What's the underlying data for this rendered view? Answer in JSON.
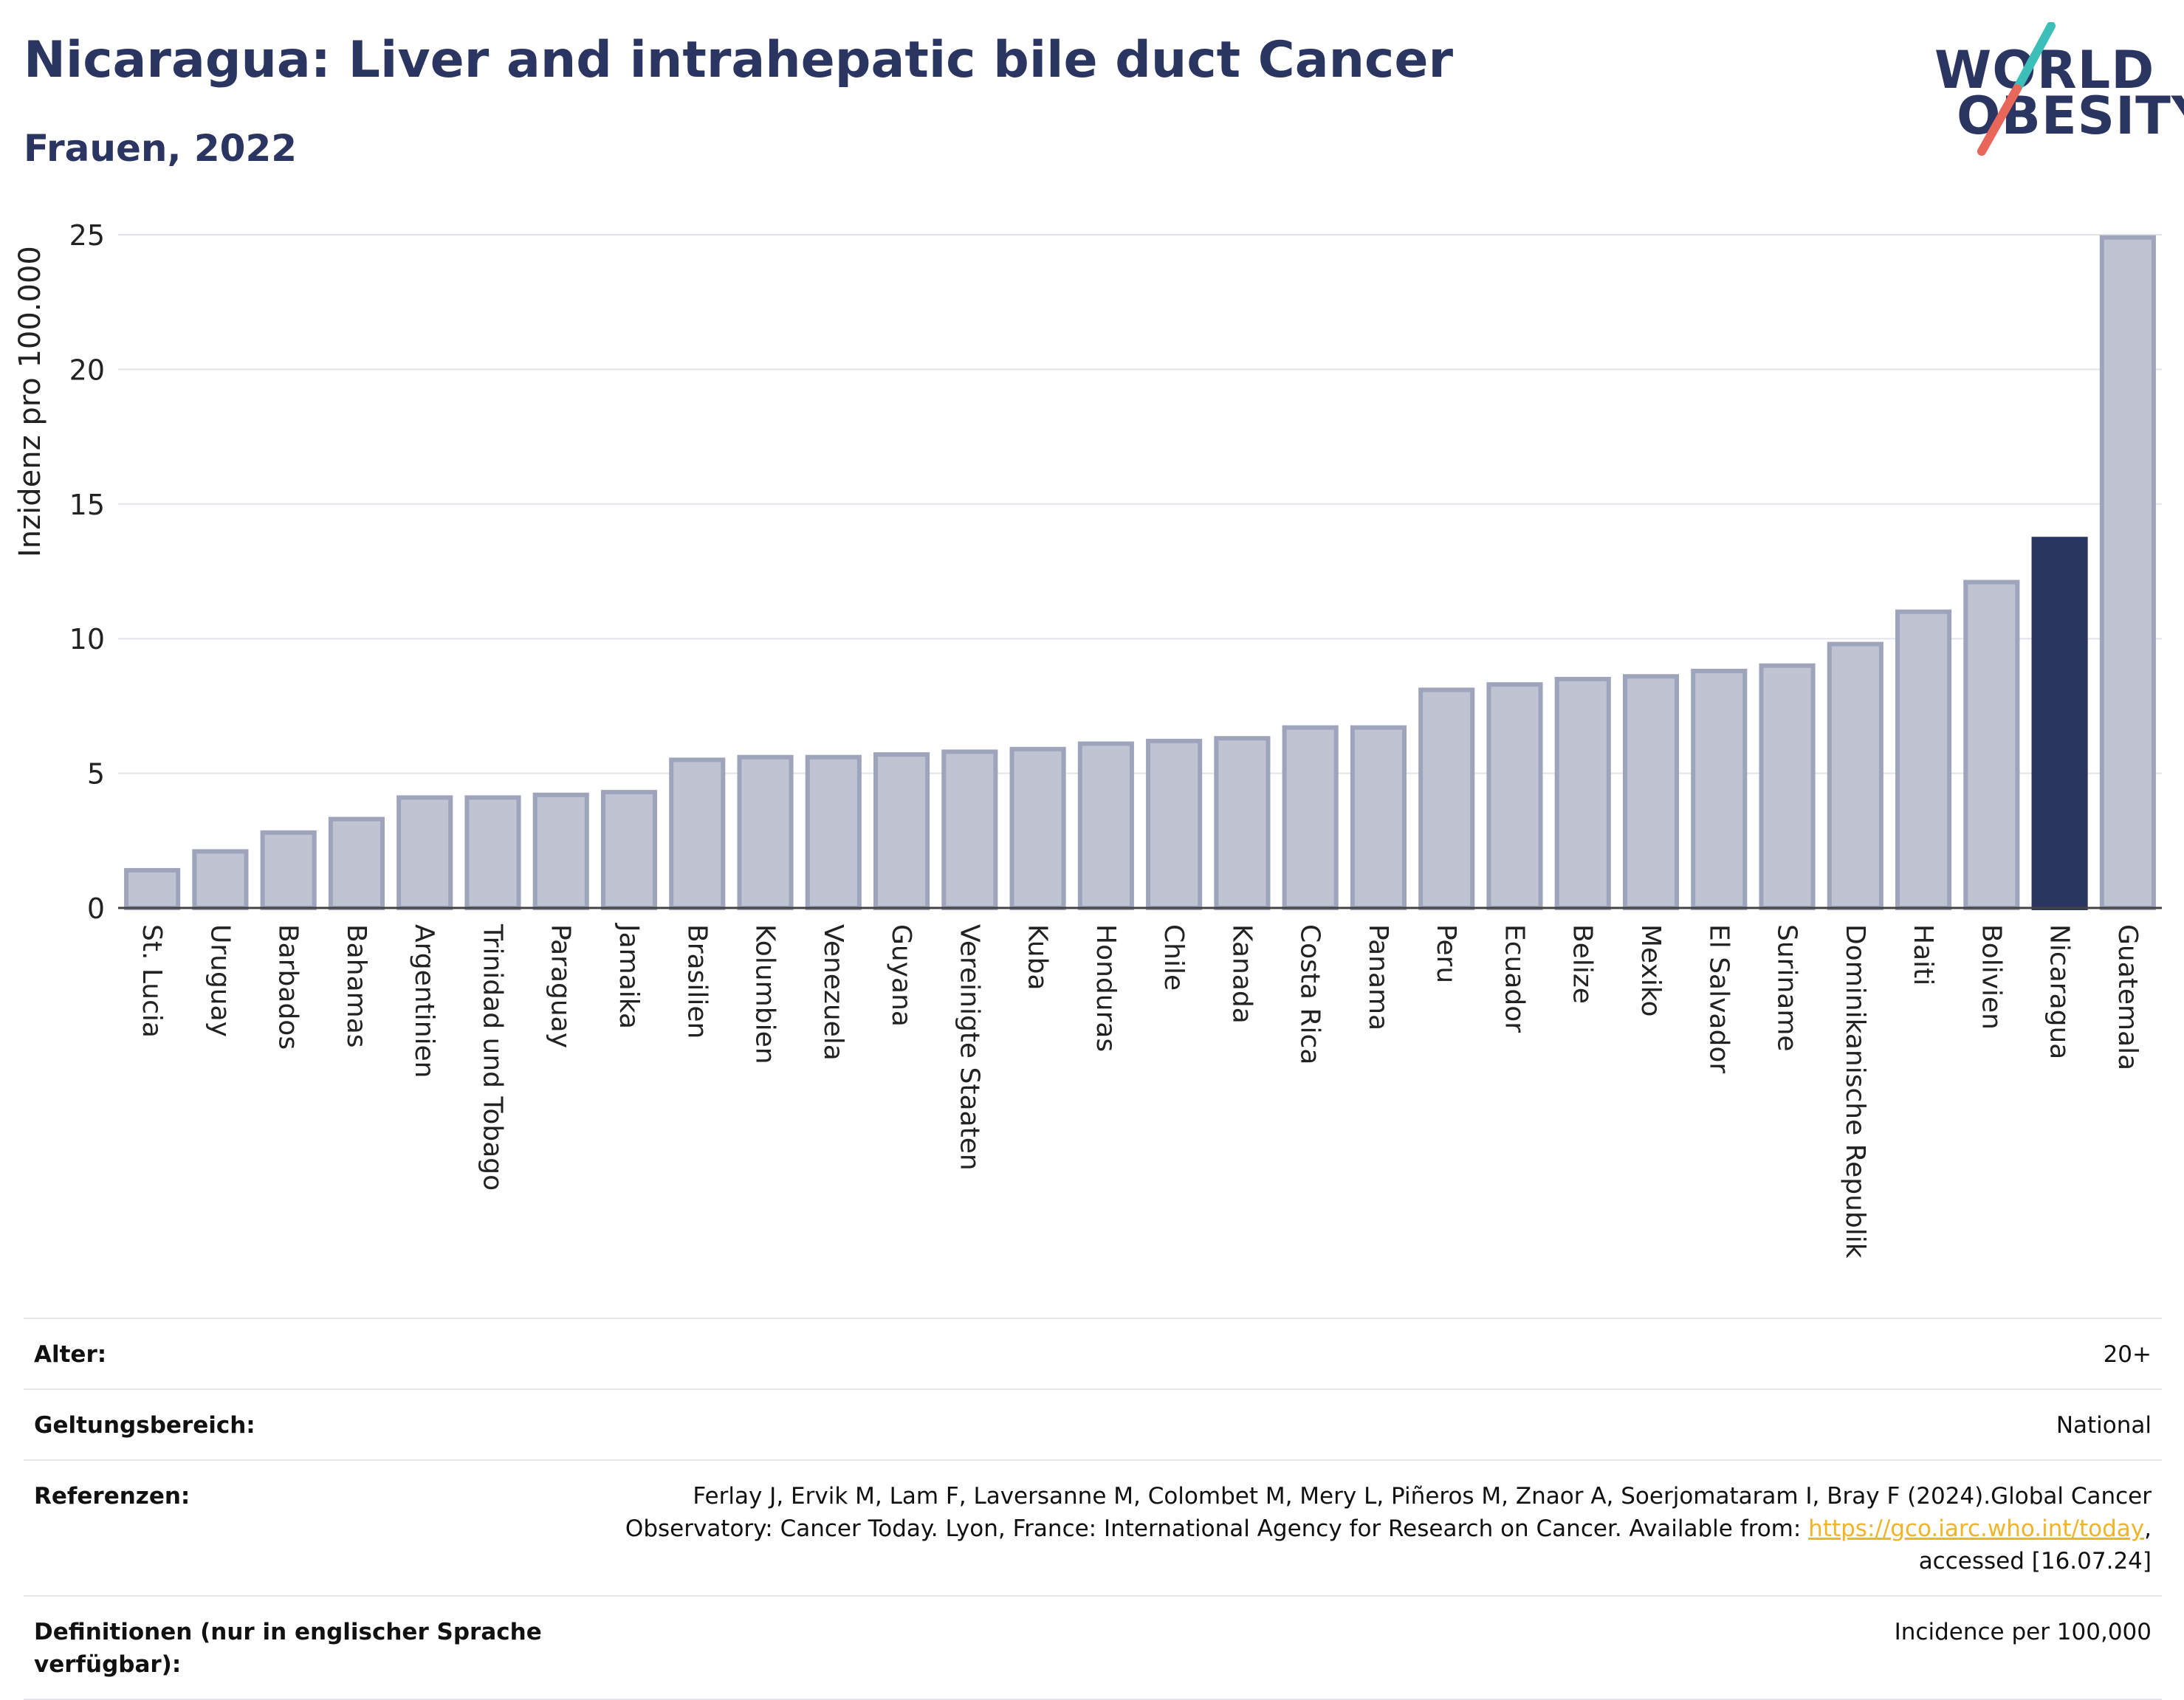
{
  "header": {
    "title": "Nicaragua: Liver and intrahepatic bile duct Cancer",
    "subtitle": "Frauen, 2022"
  },
  "logo": {
    "line1": "WORLD",
    "line2": "OBESITY",
    "colors": {
      "text": "#2b3562",
      "slash_top": "#3cbfb8",
      "slash_bottom": "#e8665a"
    }
  },
  "chart_data": {
    "type": "bar",
    "ylabel": "Inzidenz pro 100.000",
    "ylim": [
      0,
      25
    ],
    "yticks": [
      0,
      5,
      10,
      15,
      20,
      25
    ],
    "grid": true,
    "highlight": "Nicaragua",
    "colors": {
      "bar": "#c0c4d2",
      "bar_border": "#9ea4bb",
      "highlight": "#2b3562"
    },
    "categories": [
      "St. Lucia",
      "Uruguay",
      "Barbados",
      "Bahamas",
      "Argentinien",
      "Trinidad und Tobago",
      "Paraguay",
      "Jamaika",
      "Brasilien",
      "Kolumbien",
      "Venezuela",
      "Guyana",
      "Vereinigte Staaten",
      "Kuba",
      "Honduras",
      "Chile",
      "Kanada",
      "Costa Rica",
      "Panama",
      "Peru",
      "Ecuador",
      "Belize",
      "Mexiko",
      "El Salvador",
      "Suriname",
      "Dominikanische Republik",
      "Haiti",
      "Bolivien",
      "Nicaragua",
      "Guatemala"
    ],
    "values": [
      1.4,
      2.1,
      2.8,
      3.3,
      4.1,
      4.1,
      4.2,
      4.3,
      5.5,
      5.6,
      5.6,
      5.7,
      5.8,
      5.9,
      6.1,
      6.2,
      6.3,
      6.7,
      6.7,
      8.1,
      8.3,
      8.5,
      8.6,
      8.8,
      9.0,
      9.8,
      11.0,
      12.1,
      13.7,
      24.9
    ]
  },
  "meta": {
    "age_label": "Alter:",
    "age_value": "20+",
    "scope_label": "Geltungsbereich:",
    "scope_value": "National",
    "ref_label": "Referenzen:",
    "ref_text_1": "Ferlay J, Ervik M, Lam F, Laversanne M, Colombet M, Mery L, Piñeros M, Znaor A, Soerjomataram I, Bray F (2024).Global Cancer Observatory: Cancer Today. Lyon, France: International Agency for Research on Cancer. Available from: ",
    "ref_link": "https://gco.iarc.who.int/today",
    "ref_text_2": ", accessed [16.07.24]",
    "def_label": "Definitionen (nur in englischer Sprache verfügbar):",
    "def_value": "Incidence per 100,000"
  }
}
